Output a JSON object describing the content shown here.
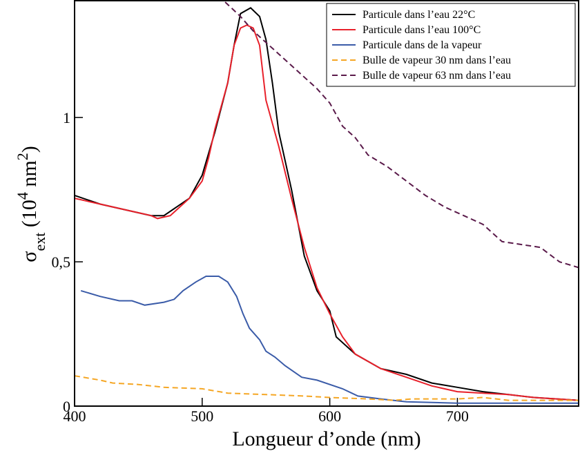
{
  "chart_data": {
    "type": "line",
    "xlabel": "Longueur d’onde (nm)",
    "ylabel": [
      {
        "text": "σ",
        "shift": "none"
      },
      {
        "text": "ext",
        "shift": "sub"
      },
      {
        "text": " (10",
        "shift": "none"
      },
      {
        "text": "4",
        "shift": "super"
      },
      {
        "text": " nm",
        "shift": "none"
      },
      {
        "text": "2",
        "shift": "super"
      },
      {
        "text": ")",
        "shift": "none"
      }
    ],
    "xlim": [
      400,
      795
    ],
    "ylim": [
      0,
      1.4
    ],
    "xticks": [
      400,
      500,
      600,
      700
    ],
    "yticks": [
      0,
      {
        "value": 0.5,
        "label": "0,5"
      },
      1
    ],
    "legend": "upper right",
    "series": [
      {
        "name": "Particule dans l’eau 22°C",
        "color": "#000000",
        "dash": false,
        "x": [
          400,
          420,
          440,
          460,
          470,
          480,
          490,
          500,
          510,
          520,
          525,
          530,
          538,
          545,
          550,
          555,
          560,
          570,
          580,
          590,
          600,
          605,
          620,
          640,
          660,
          680,
          700,
          720,
          740,
          760,
          795
        ],
        "values": [
          0.73,
          0.7,
          0.68,
          0.66,
          0.66,
          0.69,
          0.72,
          0.8,
          0.95,
          1.12,
          1.25,
          1.36,
          1.38,
          1.35,
          1.27,
          1.12,
          0.95,
          0.75,
          0.52,
          0.4,
          0.33,
          0.24,
          0.18,
          0.13,
          0.11,
          0.08,
          0.065,
          0.05,
          0.04,
          0.03,
          0.02
        ]
      },
      {
        "name": "Particule dans l’eau 100°C",
        "color": "#e8202a",
        "dash": false,
        "x": [
          400,
          420,
          440,
          460,
          465,
          475,
          490,
          500,
          505,
          510,
          520,
          525,
          530,
          535,
          540,
          545,
          550,
          560,
          570,
          580,
          590,
          600,
          610,
          620,
          640,
          660,
          680,
          700,
          720,
          740,
          760,
          795
        ],
        "values": [
          0.72,
          0.7,
          0.68,
          0.66,
          0.65,
          0.66,
          0.72,
          0.78,
          0.86,
          0.96,
          1.12,
          1.25,
          1.31,
          1.32,
          1.31,
          1.25,
          1.06,
          0.9,
          0.72,
          0.55,
          0.41,
          0.32,
          0.24,
          0.18,
          0.13,
          0.1,
          0.07,
          0.05,
          0.045,
          0.04,
          0.03,
          0.02
        ]
      },
      {
        "name": "Particule dans de la vapeur",
        "color": "#3a5ba8",
        "dash": false,
        "x": [
          405,
          420,
          435,
          445,
          455,
          470,
          478,
          485,
          495,
          503,
          513,
          520,
          527,
          532,
          537,
          545,
          550,
          557,
          565,
          578,
          590,
          610,
          622,
          640,
          660,
          700,
          750,
          795
        ],
        "values": [
          0.4,
          0.38,
          0.365,
          0.365,
          0.35,
          0.36,
          0.37,
          0.4,
          0.43,
          0.45,
          0.45,
          0.43,
          0.38,
          0.32,
          0.27,
          0.23,
          0.19,
          0.17,
          0.14,
          0.1,
          0.09,
          0.06,
          0.035,
          0.025,
          0.015,
          0.01,
          0.01,
          0.01
        ]
      },
      {
        "name": "Bulle de vapeur 30 nm dans l’eau",
        "color": "#f5a623",
        "dash": true,
        "x": [
          400,
          420,
          430,
          450,
          470,
          500,
          520,
          550,
          580,
          600,
          630,
          650,
          665,
          700,
          720,
          740,
          795
        ],
        "values": [
          0.105,
          0.09,
          0.08,
          0.075,
          0.065,
          0.06,
          0.045,
          0.04,
          0.035,
          0.03,
          0.025,
          0.02,
          0.025,
          0.025,
          0.03,
          0.02,
          0.02
        ]
      },
      {
        "name": "Bulle de vapeur 63 nm dans l’eau",
        "color": "#5a1a4a",
        "dash": true,
        "x": [
          518,
          530,
          540,
          560,
          575,
          590,
          600,
          610,
          620,
          630,
          645,
          660,
          675,
          690,
          705,
          720,
          735,
          750,
          765,
          780,
          795
        ],
        "values": [
          1.4,
          1.35,
          1.3,
          1.22,
          1.16,
          1.1,
          1.05,
          0.97,
          0.93,
          0.87,
          0.83,
          0.78,
          0.73,
          0.69,
          0.66,
          0.63,
          0.57,
          0.56,
          0.55,
          0.5,
          0.48
        ]
      }
    ]
  }
}
